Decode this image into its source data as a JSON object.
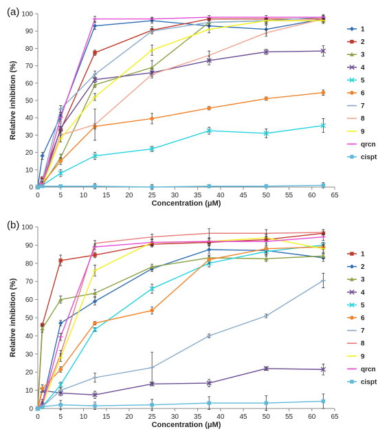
{
  "chart_data": [
    {
      "panel_label": "(a)",
      "type": "line",
      "xlabel": "Concentration (μM)",
      "ylabel": "Relative inhibition (%)",
      "xlim": [
        0,
        65
      ],
      "ylim": [
        0,
        100
      ],
      "xticks": [
        "0",
        "5",
        "10",
        "15",
        "20",
        "25",
        "30",
        "35",
        "40",
        "45",
        "50",
        "55",
        "60",
        "65"
      ],
      "yticks": [
        "0",
        "10",
        "20",
        "30",
        "40",
        "50",
        "60",
        "70",
        "80",
        "90",
        "100"
      ],
      "grid": false,
      "legend_position": "right",
      "x": [
        0,
        1,
        5,
        12.5,
        25,
        37.5,
        50,
        62.5
      ],
      "series": [
        {
          "name": "1",
          "color": "#2e6db4",
          "marker": "diamond",
          "values": [
            0,
            18,
            41,
            93,
            96,
            93,
            91,
            97
          ],
          "errors": [
            0.5,
            2,
            2,
            2,
            1.5,
            2,
            2.5,
            1.5
          ]
        },
        {
          "name": "2",
          "color": "#c0392b",
          "marker": "square",
          "values": [
            0,
            5,
            33,
            77.5,
            90.5,
            97,
            97,
            97
          ],
          "errors": [
            0.5,
            1,
            2,
            1.5,
            2,
            1,
            1,
            1
          ]
        },
        {
          "name": "3",
          "color": "#8aa042",
          "marker": "triangle",
          "values": [
            0,
            1,
            17,
            59,
            69,
            95,
            96,
            96
          ],
          "errors": [
            0.5,
            1,
            2,
            1.5,
            4,
            2,
            1.5,
            1.5
          ]
        },
        {
          "name": "4",
          "color": "#6a4c93",
          "marker": "x",
          "values": [
            0,
            1,
            34,
            62,
            66,
            73,
            78,
            78.5
          ],
          "errors": [
            0.5,
            1,
            3,
            1.5,
            2,
            2.5,
            1.5,
            3
          ]
        },
        {
          "name": "5",
          "color": "#22d3e0",
          "marker": "x",
          "values": [
            0,
            1,
            8,
            18,
            22,
            32.5,
            31,
            35.5
          ],
          "errors": [
            0.5,
            1,
            2,
            2,
            1.5,
            2,
            2.5,
            4
          ]
        },
        {
          "name": "6",
          "color": "#f0822a",
          "marker": "circle",
          "values": [
            0,
            2,
            15,
            35,
            39.5,
            45.5,
            51,
            54.5
          ],
          "errors": [
            0.5,
            1,
            2,
            1.5,
            3,
            1,
            1,
            1.5
          ]
        },
        {
          "name": "7",
          "color": "#88aacc",
          "marker": "dash",
          "values": [
            0,
            4,
            45,
            65,
            90,
            95,
            96,
            98
          ],
          "errors": [
            0.5,
            1,
            2,
            2,
            1.5,
            2,
            2,
            1.5
          ]
        },
        {
          "name": "8",
          "color": "#f2a38e",
          "marker": "none",
          "values": [
            0,
            1,
            30,
            36,
            65,
            76,
            89,
            97
          ],
          "errors": [
            0.5,
            1,
            2,
            9,
            2,
            2.5,
            2,
            1.5
          ]
        },
        {
          "name": "9",
          "color": "#f4f016",
          "marker": "dash",
          "values": [
            0,
            1,
            28,
            52,
            79,
            91,
            96,
            96
          ],
          "errors": [
            0.5,
            1,
            2,
            2,
            3,
            2,
            1.5,
            1.5
          ]
        },
        {
          "name": "qrcn",
          "color": "#e64ad6",
          "marker": "dash",
          "values": [
            0,
            2,
            40,
            97,
            97,
            98,
            98,
            98
          ],
          "errors": [
            0.5,
            1,
            2,
            1.5,
            1,
            1,
            1,
            1
          ]
        },
        {
          "name": "cispt",
          "color": "#5bb8d9",
          "marker": "square",
          "values": [
            0,
            0.5,
            0.5,
            0.5,
            0,
            0.5,
            0.5,
            1
          ],
          "errors": [
            0.5,
            0.5,
            0.5,
            1.5,
            1.5,
            1,
            1,
            1.5
          ]
        }
      ]
    },
    {
      "panel_label": "(b)",
      "type": "line",
      "xlabel": "Concentration (μM)",
      "ylabel": "Relative inhibition (%)",
      "xlim": [
        0,
        65
      ],
      "ylim": [
        0,
        100
      ],
      "xticks": [
        "0",
        "5",
        "10",
        "15",
        "20",
        "25",
        "30",
        "35",
        "40",
        "45",
        "50",
        "55",
        "60",
        "65"
      ],
      "yticks": [
        "0",
        "10",
        "20",
        "30",
        "40",
        "50",
        "60",
        "70",
        "80",
        "90",
        "100"
      ],
      "grid": false,
      "legend_position": "right",
      "x": [
        0,
        1,
        5,
        12.5,
        25,
        37.5,
        50,
        62.5
      ],
      "series": [
        {
          "name": "1",
          "color": "#c0392b",
          "marker": "square",
          "values": [
            0,
            46,
            81.5,
            84.5,
            90.5,
            91.5,
            93,
            96.5
          ],
          "errors": [
            0.5,
            1,
            3,
            1.5,
            1.5,
            2,
            2,
            2
          ]
        },
        {
          "name": "2",
          "color": "#2e6db4",
          "marker": "diamond",
          "values": [
            0,
            3,
            47,
            59,
            77,
            87.5,
            87,
            83
          ],
          "errors": [
            0.5,
            1,
            1.5,
            2,
            1.5,
            2,
            2,
            2
          ]
        },
        {
          "name": "3",
          "color": "#8aa042",
          "marker": "triangle",
          "values": [
            0,
            44,
            60,
            63.5,
            78,
            83,
            82.5,
            84
          ],
          "errors": [
            0.5,
            2,
            2,
            2,
            1.5,
            1.5,
            1.5,
            1.5
          ]
        },
        {
          "name": "4",
          "color": "#6a4c93",
          "marker": "x",
          "values": [
            0,
            10,
            8.5,
            7.5,
            13.5,
            14,
            22,
            21.5
          ],
          "errors": [
            0.5,
            1,
            1.5,
            2,
            1,
            2,
            1,
            3
          ]
        },
        {
          "name": "5",
          "color": "#22d3e0",
          "marker": "x",
          "values": [
            0,
            1,
            13,
            43.5,
            66,
            80,
            86.5,
            90
          ],
          "errors": [
            0.5,
            1,
            1.5,
            1,
            2.5,
            2,
            2,
            1.5
          ]
        },
        {
          "name": "6",
          "color": "#f0822a",
          "marker": "circle",
          "values": [
            0,
            11,
            21.5,
            47,
            54,
            82,
            88,
            89
          ],
          "errors": [
            0.5,
            2,
            1.5,
            1,
            2,
            2,
            2,
            1.5
          ]
        },
        {
          "name": "7",
          "color": "#88aacc",
          "marker": "dash",
          "values": [
            0,
            1,
            10,
            17,
            22.5,
            40,
            51,
            70.5
          ],
          "errors": [
            0.5,
            1,
            1,
            2.5,
            8.5,
            1,
            1,
            4
          ]
        },
        {
          "name": "8",
          "color": "#e87a7a",
          "marker": "none",
          "values": [
            0,
            4,
            30,
            91,
            94.5,
            96.5,
            96.5,
            97
          ],
          "errors": [
            0.5,
            1,
            2,
            1.5,
            1.5,
            2.5,
            2,
            1.5
          ]
        },
        {
          "name": "9",
          "color": "#f4f016",
          "marker": "dash",
          "values": [
            0,
            2,
            28,
            76,
            91.5,
            92,
            94,
            88
          ],
          "errors": [
            0.5,
            1,
            2,
            3,
            2,
            1.5,
            2,
            2
          ]
        },
        {
          "name": "qrcn",
          "color": "#e64ad6",
          "marker": "dash",
          "values": [
            0,
            2,
            39.5,
            89,
            91.5,
            92,
            92,
            94.5
          ],
          "errors": [
            0.5,
            1,
            2,
            1.5,
            1.5,
            2,
            2,
            2
          ]
        },
        {
          "name": "cispt",
          "color": "#5bb8d9",
          "marker": "square",
          "values": [
            0,
            1,
            2,
            1.5,
            2,
            3,
            3,
            4
          ],
          "errors": [
            0.5,
            1,
            2.5,
            2,
            3,
            3.5,
            4,
            4
          ]
        }
      ]
    }
  ]
}
